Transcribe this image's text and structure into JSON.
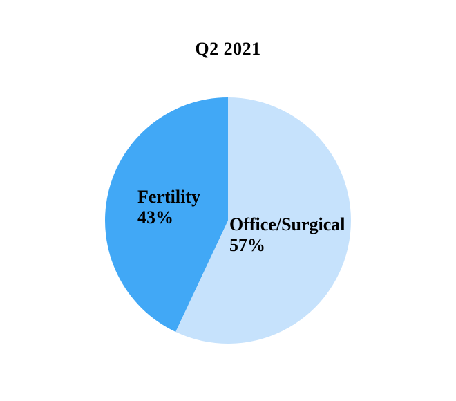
{
  "chart_data": {
    "type": "pie",
    "title": "Q2 2021",
    "slices": [
      {
        "label": "Fertility",
        "value": 43,
        "pct_label": "43%",
        "color": "#41A8F6"
      },
      {
        "label": "Office/Surgical",
        "value": 57,
        "pct_label": "57%",
        "color": "#C6E2FC"
      }
    ],
    "start_angle": "top",
    "direction": "counterclockwise",
    "labels_inside": true,
    "legend": "none",
    "background_color": "#FFFFFF",
    "text_color": "#000000"
  }
}
